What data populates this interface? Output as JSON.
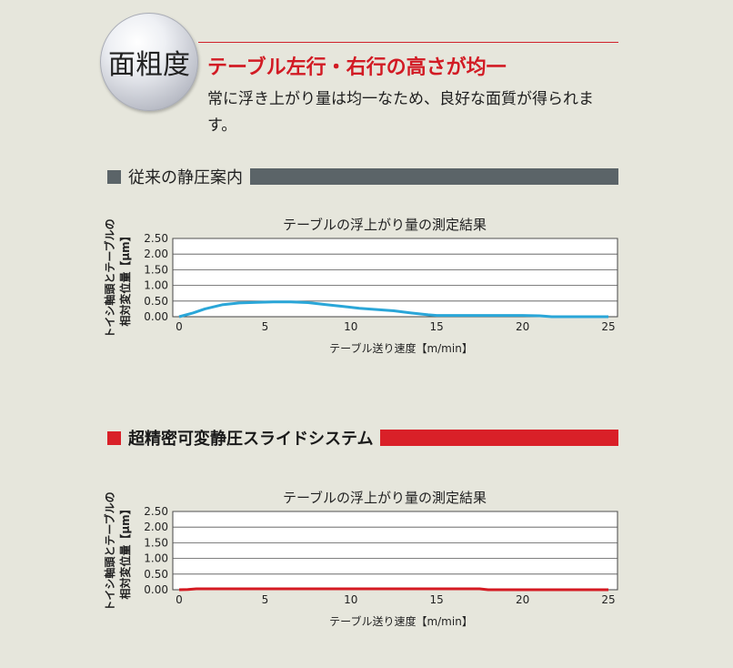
{
  "badge": {
    "label": "面粗度"
  },
  "header": {
    "headline": "テーブル左行・右行の高さが均一",
    "description": "常に浮き上がり量は均一なため、良好な面質が得られます。"
  },
  "sections": [
    {
      "title": "従来の静圧案内"
    },
    {
      "title": "超精密可変静圧スライドシステム"
    }
  ],
  "colors": {
    "accent_red": "#d21b24",
    "section_gray": "#5b6468",
    "line_blue": "#2aa6d8",
    "line_red": "#d41a22"
  },
  "chart_data": [
    {
      "type": "line",
      "title": "テーブルの浮上がり量の測定結果",
      "xlabel": "テーブル送り速度【m/min】",
      "ylabel_lines": [
        "トイシ軸頭とテーブルの",
        "相対変位量【μm】"
      ],
      "xlim": [
        0,
        25
      ],
      "ylim": [
        0,
        2.5
      ],
      "x_ticks": [
        "0",
        "5",
        "10",
        "15",
        "20",
        "25"
      ],
      "y_ticks": [
        "0.00",
        "0.50",
        "1.00",
        "1.50",
        "2.00",
        "2.50"
      ],
      "grid": true,
      "series": [
        {
          "color": "#2aa6d8",
          "x": [
            0,
            0.8,
            1.5,
            2.5,
            3.5,
            4.5,
            5.5,
            6.5,
            7.5,
            8.5,
            9.5,
            10.5,
            11.5,
            12.5,
            13.5,
            14.5,
            15,
            16,
            17,
            18,
            19,
            20,
            21,
            21.7,
            22.5,
            23.5,
            24.5,
            25
          ],
          "y": [
            0,
            0.12,
            0.25,
            0.38,
            0.44,
            0.46,
            0.47,
            0.47,
            0.45,
            0.39,
            0.33,
            0.27,
            0.23,
            0.19,
            0.12,
            0.06,
            0.04,
            0.04,
            0.04,
            0.04,
            0.04,
            0.04,
            0.03,
            0.0,
            0.0,
            0.0,
            0.0,
            0.0
          ]
        }
      ]
    },
    {
      "type": "line",
      "title": "テーブルの浮上がり量の測定結果",
      "xlabel": "テーブル送り速度【m/min】",
      "ylabel_lines": [
        "トイシ軸頭とテーブルの",
        "相対変位量【μm】"
      ],
      "xlim": [
        0,
        25
      ],
      "ylim": [
        0,
        2.5
      ],
      "x_ticks": [
        "0",
        "5",
        "10",
        "15",
        "20",
        "25"
      ],
      "y_ticks": [
        "0.00",
        "0.50",
        "1.00",
        "1.50",
        "2.00",
        "2.50"
      ],
      "grid": true,
      "series": [
        {
          "color": "#d41a22",
          "x": [
            0,
            0.5,
            1,
            2,
            5,
            10,
            15,
            17.5,
            18,
            20,
            22,
            25
          ],
          "y": [
            0,
            0.01,
            0.03,
            0.03,
            0.03,
            0.03,
            0.03,
            0.03,
            0.0,
            0.0,
            0.0,
            0.0
          ]
        }
      ]
    }
  ]
}
